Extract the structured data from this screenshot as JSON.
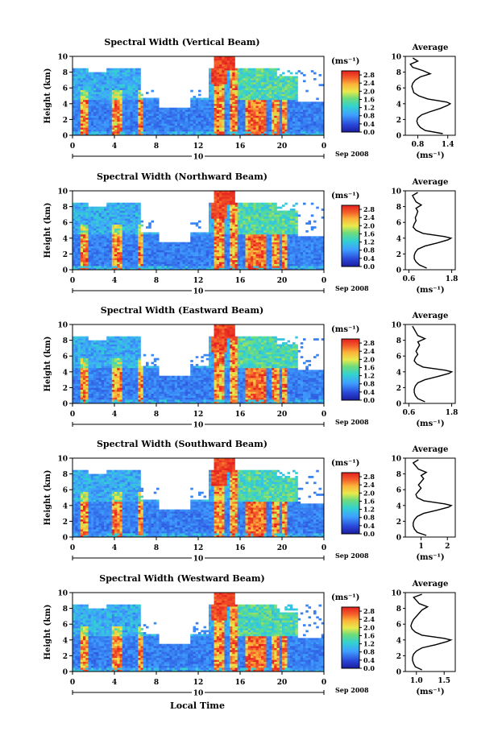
{
  "figure": {
    "xlabel_bottom": "Local Time",
    "date_label": "Sep 2008",
    "day_marker": "10"
  },
  "chart_data": [
    {
      "type": "heatmap",
      "title": "Spectral Width (Vertical Beam)",
      "ylabel": "Height (km)",
      "xlabel": "Local Time",
      "xlim": [
        0,
        24
      ],
      "ylim": [
        0,
        10
      ],
      "x_ticks": [
        "0",
        "4",
        "8",
        "12",
        "16",
        "20",
        "0"
      ],
      "y_ticks": [
        "0",
        "2",
        "4",
        "6",
        "8",
        "10"
      ],
      "colorbar": {
        "unit": "(ms⁻¹)",
        "ticks": [
          "0.0",
          "0.4",
          "0.8",
          "1.2",
          "1.6",
          "2.0",
          "2.4",
          "2.8"
        ],
        "range": [
          0,
          3.0
        ]
      },
      "profile": {
        "title": "Average",
        "xlabel": "(ms⁻¹)",
        "xlim": [
          0.55,
          1.55
        ],
        "x_ticks": [
          "0.8",
          "1.4"
        ],
        "x_tick_values": [
          0.8,
          1.4
        ],
        "heights": [
          0.2,
          0.6,
          1.0,
          1.4,
          1.8,
          2.2,
          2.6,
          3.0,
          3.4,
          3.8,
          4.0,
          4.2,
          4.6,
          5.0,
          5.4,
          5.8,
          6.2,
          6.6,
          7.0,
          7.4,
          7.8,
          8.2,
          8.6,
          9.0,
          9.4,
          9.8
        ],
        "values": [
          1.3,
          0.95,
          0.85,
          0.8,
          0.78,
          0.8,
          0.88,
          1.05,
          1.25,
          1.4,
          1.45,
          1.38,
          1.0,
          0.82,
          0.72,
          0.7,
          0.68,
          0.7,
          0.75,
          0.85,
          1.05,
          0.9,
          0.7,
          0.65,
          0.8,
          0.7
        ]
      }
    },
    {
      "type": "heatmap",
      "title": "Spectral Width (Northward Beam)",
      "ylabel": "Height (km)",
      "xlabel": "Local Time",
      "xlim": [
        0,
        24
      ],
      "ylim": [
        0,
        10
      ],
      "x_ticks": [
        "0",
        "4",
        "8",
        "12",
        "16",
        "20",
        "0"
      ],
      "y_ticks": [
        "0",
        "2",
        "4",
        "6",
        "8",
        "10"
      ],
      "colorbar": {
        "unit": "(ms⁻¹)",
        "ticks": [
          "0.0",
          "0.4",
          "0.8",
          "1.2",
          "1.6",
          "2.0",
          "2.4",
          "2.8"
        ],
        "range": [
          0,
          3.0
        ]
      },
      "profile": {
        "title": "Average",
        "xlabel": "(ms⁻¹)",
        "xlim": [
          0.5,
          1.9
        ],
        "x_ticks": [
          "0.6",
          "1.8"
        ],
        "x_tick_values": [
          0.6,
          1.8
        ],
        "heights": [
          0.2,
          0.6,
          1.0,
          1.4,
          1.8,
          2.2,
          2.6,
          3.0,
          3.4,
          3.8,
          4.0,
          4.2,
          4.6,
          5.0,
          5.4,
          5.8,
          6.2,
          6.6,
          7.0,
          7.4,
          7.8,
          8.2,
          8.6,
          9.0,
          9.4,
          9.8
        ],
        "values": [
          1.1,
          0.9,
          0.8,
          0.75,
          0.75,
          0.78,
          0.85,
          1.05,
          1.4,
          1.7,
          1.78,
          1.6,
          1.0,
          0.8,
          0.72,
          0.75,
          0.8,
          0.78,
          0.82,
          0.85,
          0.8,
          0.95,
          0.8,
          0.75,
          0.7,
          0.85
        ]
      }
    },
    {
      "type": "heatmap",
      "title": "Spectral Width (Eastward Beam)",
      "ylabel": "Height (km)",
      "xlabel": "Local Time",
      "xlim": [
        0,
        24
      ],
      "ylim": [
        0,
        10
      ],
      "x_ticks": [
        "0",
        "4",
        "8",
        "12",
        "16",
        "20",
        "0"
      ],
      "y_ticks": [
        "0",
        "2",
        "4",
        "6",
        "8",
        "10"
      ],
      "colorbar": {
        "unit": "(ms⁻¹)",
        "ticks": [
          "0.0",
          "0.4",
          "0.8",
          "1.2",
          "1.6",
          "2.0",
          "2.4",
          "2.8"
        ],
        "range": [
          0,
          3.0
        ]
      },
      "profile": {
        "title": "Average",
        "xlabel": "(ms⁻¹)",
        "xlim": [
          0.5,
          1.9
        ],
        "x_ticks": [
          "0.6",
          "1.8"
        ],
        "x_tick_values": [
          0.6,
          1.8
        ],
        "heights": [
          0.2,
          0.6,
          1.0,
          1.4,
          1.8,
          2.2,
          2.6,
          3.0,
          3.4,
          3.8,
          4.0,
          4.2,
          4.6,
          5.0,
          5.4,
          5.8,
          6.2,
          6.6,
          7.0,
          7.4,
          7.8,
          8.2,
          8.6,
          9.0,
          9.4,
          9.8
        ],
        "values": [
          1.05,
          0.85,
          0.78,
          0.75,
          0.75,
          0.78,
          0.85,
          1.05,
          1.4,
          1.72,
          1.8,
          1.62,
          1.0,
          0.82,
          0.75,
          0.78,
          0.85,
          0.8,
          0.85,
          0.9,
          0.85,
          1.05,
          0.85,
          0.8,
          0.75,
          0.7
        ]
      }
    },
    {
      "type": "heatmap",
      "title": "Spectral Width (Southward Beam)",
      "ylabel": "Height (km)",
      "xlabel": "Local Time",
      "xlim": [
        0,
        24
      ],
      "ylim": [
        0,
        10
      ],
      "x_ticks": [
        "0",
        "4",
        "8",
        "12",
        "16",
        "20",
        "0"
      ],
      "y_ticks": [
        "0",
        "2",
        "4",
        "6",
        "8",
        "10"
      ],
      "colorbar": {
        "unit": "(ms⁻¹)",
        "ticks": [
          "0.0",
          "0.4",
          "0.8",
          "1.2",
          "1.6",
          "2.0",
          "2.4",
          "2.8"
        ],
        "range": [
          0,
          3.0
        ]
      },
      "profile": {
        "title": "Average",
        "xlabel": "(ms⁻¹)",
        "xlim": [
          0.4,
          2.3
        ],
        "x_ticks": [
          "1",
          "2"
        ],
        "x_tick_values": [
          1,
          2
        ],
        "heights": [
          0.2,
          0.6,
          1.0,
          1.4,
          1.8,
          2.2,
          2.6,
          3.0,
          3.4,
          3.8,
          4.0,
          4.2,
          4.6,
          5.0,
          5.4,
          5.8,
          6.2,
          6.6,
          7.0,
          7.4,
          7.8,
          8.2,
          8.6,
          9.0,
          9.4,
          9.8
        ],
        "values": [
          1.2,
          0.85,
          0.75,
          0.7,
          0.7,
          0.75,
          0.85,
          1.1,
          1.6,
          2.05,
          2.15,
          1.9,
          1.1,
          0.85,
          0.8,
          0.9,
          1.0,
          0.9,
          1.0,
          1.1,
          1.0,
          1.2,
          0.9,
          0.8,
          0.7,
          0.9
        ]
      }
    },
    {
      "type": "heatmap",
      "title": "Spectral Width (Westward Beam)",
      "ylabel": "Height (km)",
      "xlabel": "Local Time",
      "xlim": [
        0,
        24
      ],
      "ylim": [
        0,
        10
      ],
      "x_ticks": [
        "0",
        "4",
        "8",
        "12",
        "16",
        "20",
        "0"
      ],
      "y_ticks": [
        "0",
        "2",
        "4",
        "6",
        "8",
        "10"
      ],
      "colorbar": {
        "unit": "(ms⁻¹)",
        "ticks": [
          "0.0",
          "0.4",
          "0.8",
          "1.2",
          "1.6",
          "2.0",
          "2.4",
          "2.8"
        ],
        "range": [
          0,
          3.0
        ]
      },
      "profile": {
        "title": "Average",
        "xlabel": "(ms⁻¹)",
        "xlim": [
          0.8,
          1.7
        ],
        "x_ticks": [
          "1.0",
          "1.5"
        ],
        "x_tick_values": [
          1.0,
          1.5
        ],
        "heights": [
          0.2,
          0.6,
          1.0,
          1.4,
          1.8,
          2.2,
          2.6,
          3.0,
          3.4,
          3.8,
          4.0,
          4.2,
          4.6,
          5.0,
          5.4,
          5.8,
          6.2,
          6.6,
          7.0,
          7.4,
          7.8,
          8.2,
          8.6,
          9.0,
          9.4,
          9.8
        ],
        "values": [
          1.1,
          0.98,
          0.95,
          0.93,
          0.93,
          0.95,
          1.0,
          1.1,
          1.35,
          1.55,
          1.62,
          1.5,
          1.1,
          0.98,
          0.92,
          0.9,
          0.92,
          0.95,
          1.0,
          1.05,
          1.1,
          1.2,
          1.05,
          1.0,
          0.95,
          1.1
        ]
      }
    }
  ]
}
